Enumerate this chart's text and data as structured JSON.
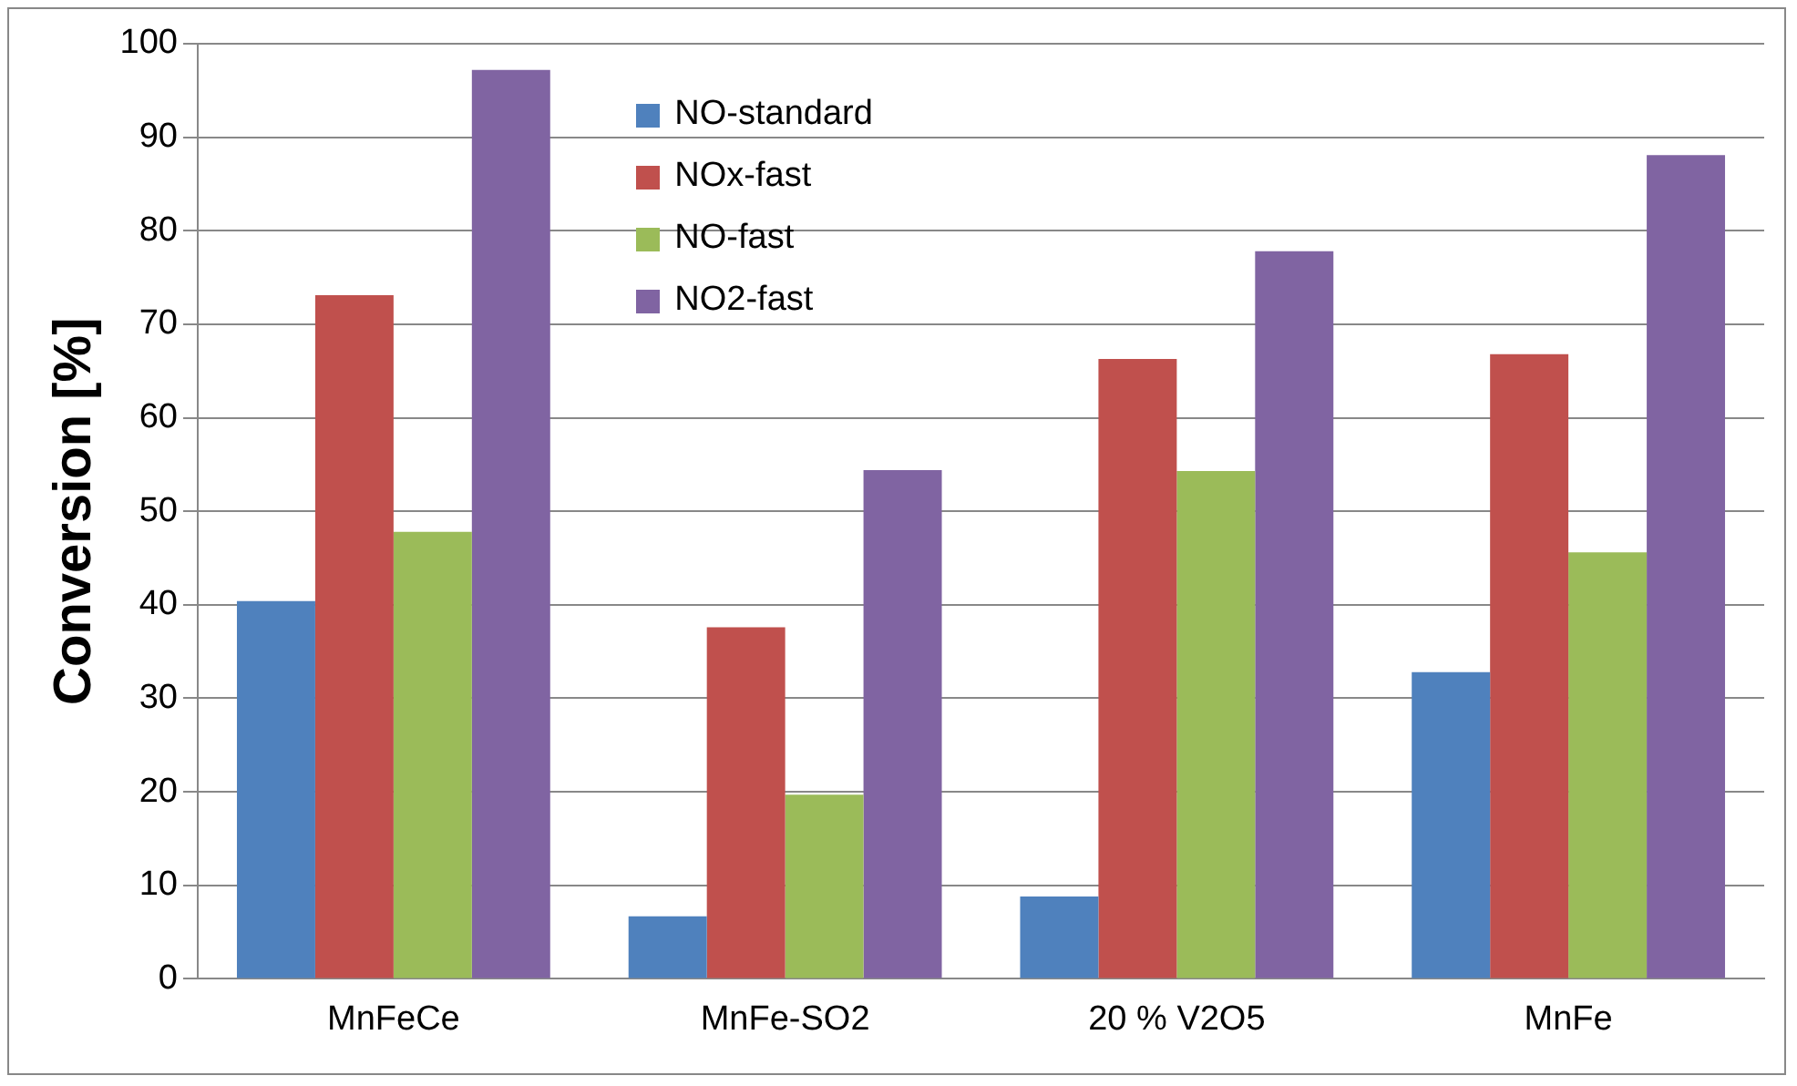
{
  "chart_data": {
    "type": "bar",
    "ylabel": "Conversion [%]",
    "categories": [
      "MnFeCe",
      "MnFe-SO2",
      "20 % V2O5",
      "MnFe"
    ],
    "series": [
      {
        "name": "NO-standard",
        "color": "#4f81bd",
        "values": [
          40.4,
          6.7,
          8.8,
          32.8
        ]
      },
      {
        "name": "NOx-fast",
        "color": "#c0504d",
        "values": [
          73.1,
          37.6,
          66.3,
          66.8
        ]
      },
      {
        "name": "NO-fast",
        "color": "#9bbb59",
        "values": [
          47.8,
          19.7,
          54.3,
          45.6
        ]
      },
      {
        "name": "NO2-fast",
        "color": "#8064a2",
        "values": [
          97.2,
          54.4,
          77.8,
          88.1
        ]
      }
    ],
    "ylim": [
      0,
      100
    ],
    "yticks": [
      0,
      10,
      20,
      30,
      40,
      50,
      60,
      70,
      80,
      90,
      100
    ],
    "grid": "y",
    "legend": "top"
  }
}
